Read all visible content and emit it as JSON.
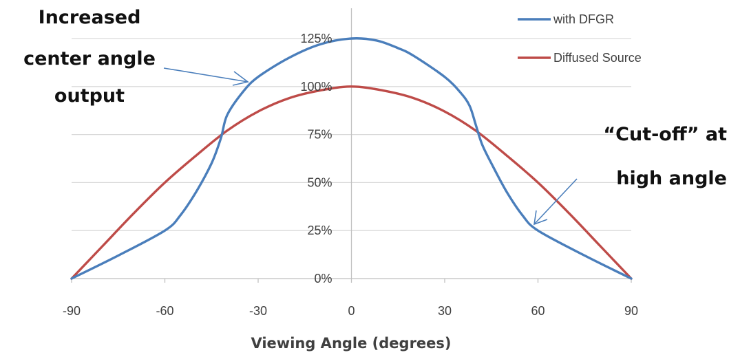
{
  "chart_data": {
    "type": "line",
    "xlabel": "Viewing Angle (degrees)",
    "ylabel": "",
    "xlim": [
      -90,
      90
    ],
    "ylim": [
      0,
      125
    ],
    "x_ticks": [
      "-90",
      "-60",
      "-30",
      "0",
      "30",
      "60",
      "90"
    ],
    "y_ticks": [
      "0%",
      "25%",
      "50%",
      "75%",
      "100%",
      "125%"
    ],
    "grid": "horizontal",
    "legend_position": "top-right",
    "series": [
      {
        "name": "with DFGR",
        "color": "#4a7ebb",
        "x": [
          -90,
          -75,
          -60,
          -55,
          -50,
          -45,
          -42,
          -40,
          -35,
          -30,
          -20,
          -10,
          0,
          8,
          15,
          20,
          30,
          35,
          38,
          40,
          42,
          45,
          50,
          55,
          60,
          75,
          90
        ],
        "y": [
          0,
          12,
          25,
          33,
          45,
          60,
          73,
          85,
          97,
          105,
          115,
          122,
          125,
          124,
          120,
          116,
          105,
          97,
          90,
          80,
          70,
          60,
          45,
          33,
          25,
          12,
          0
        ]
      },
      {
        "name": "Diffused Source",
        "color": "#be4b48",
        "x": [
          -90,
          -80,
          -70,
          -60,
          -50,
          -40,
          -30,
          -20,
          -10,
          0,
          10,
          20,
          30,
          40,
          50,
          60,
          70,
          80,
          90
        ],
        "y": [
          0,
          17,
          34,
          50,
          64,
          77,
          87,
          94,
          98,
          100,
          98,
          94,
          87,
          77,
          64,
          50,
          34,
          17,
          0
        ]
      }
    ]
  },
  "annotations": {
    "left_line1": "Increased",
    "left_line2": "center angle",
    "left_line3": "output",
    "right_line1": "“Cut-off” at",
    "right_line2": "high angle"
  }
}
